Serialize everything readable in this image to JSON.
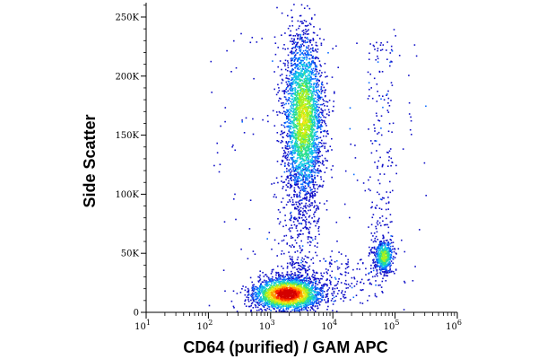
{
  "chart_data": {
    "type": "scatter",
    "subtype": "flow-cytometry-density-dot-plot",
    "title": "",
    "xlabel": "CD64 (purified) / GAM APC",
    "ylabel": "Side Scatter",
    "x_scale": "log",
    "x_range": [
      10,
      1000000
    ],
    "x_ticks": [
      {
        "value": 10,
        "base": "10",
        "exp": "1"
      },
      {
        "value": 100,
        "base": "10",
        "exp": "2"
      },
      {
        "value": 1000,
        "base": "10",
        "exp": "3"
      },
      {
        "value": 10000,
        "base": "10",
        "exp": "4"
      },
      {
        "value": 100000,
        "base": "10",
        "exp": "5"
      },
      {
        "value": 1000000,
        "base": "10",
        "exp": "6"
      }
    ],
    "y_scale": "linear",
    "y_range": [
      0,
      262144
    ],
    "y_ticks": [
      {
        "value": 0,
        "label": "0"
      },
      {
        "value": 50000,
        "label": "50K"
      },
      {
        "value": 100000,
        "label": "100K"
      },
      {
        "value": 150000,
        "label": "150K"
      },
      {
        "value": 200000,
        "label": "200K"
      },
      {
        "value": 250000,
        "label": "250K"
      }
    ],
    "grid": false,
    "density_colors": [
      "#1010c8",
      "#0a6cff",
      "#12c8e6",
      "#2ee08a",
      "#a8f01e",
      "#f5e614",
      "#ff9a00",
      "#ff2a00",
      "#d40000"
    ],
    "populations": [
      {
        "center_x": 1800,
        "center_y": 16000,
        "spread_x_decades": 0.28,
        "spread_y": 7000,
        "events": 2300,
        "peak_density": 1.0
      },
      {
        "center_x": 3300,
        "center_y": 165000,
        "spread_x_decades": 0.16,
        "spread_y": 36000,
        "events": 2800,
        "peak_density": 0.55
      },
      {
        "center_x": 65000,
        "center_y": 48000,
        "spread_x_decades": 0.08,
        "spread_y": 7000,
        "events": 500,
        "peak_density": 0.5
      }
    ]
  }
}
